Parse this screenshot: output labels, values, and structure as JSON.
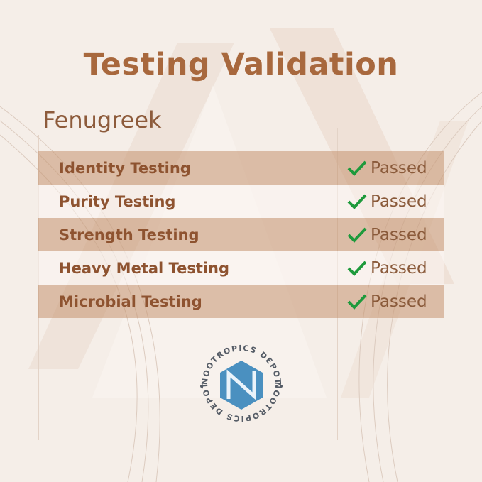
{
  "title": "Testing Validation",
  "product": "Fenugreek",
  "tests": [
    {
      "name": "Identity Testing",
      "result": "Passed"
    },
    {
      "name": "Purity Testing",
      "result": "Passed"
    },
    {
      "name": "Strength Testing",
      "result": "Passed"
    },
    {
      "name": "Heavy Metal Testing",
      "result": "Passed"
    },
    {
      "name": "Microbial Testing",
      "result": "Passed"
    }
  ],
  "result_icon": "checkmark-icon",
  "logo": {
    "text": "NOOTROPICS DEPOT"
  },
  "colors": {
    "accent": "#a8683d",
    "check": "#1e9a3c",
    "logo_blue": "#4a90c0",
    "row_shade": "#d8b9a2"
  }
}
